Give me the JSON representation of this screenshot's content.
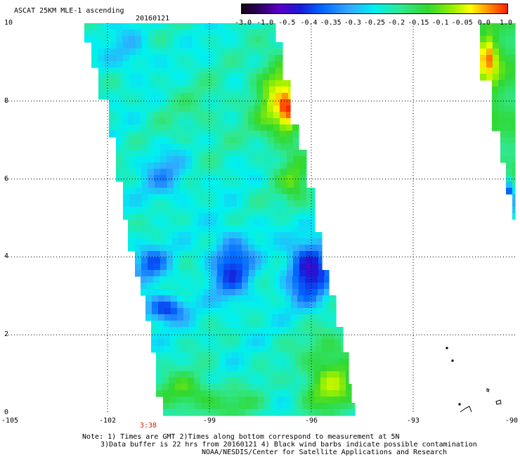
{
  "header": {
    "title": "ASCAT 25KM MLE-1 ascending",
    "date": "20160121"
  },
  "colorbar": {
    "tick_labels": [
      "-3.0",
      "-1.0",
      "-0.5",
      "-0.4",
      "-0.35",
      "-0.3",
      "-0.25",
      "-0.2",
      "-0.15",
      "-0.1",
      "-0.05",
      "0.0",
      "1.0"
    ],
    "colors": [
      "#150019",
      "#2a0055",
      "#5a00c8",
      "#1a1ad8",
      "#0066ff",
      "#33a6ff",
      "#00f0f0",
      "#30e890",
      "#30d830",
      "#a0f000",
      "#ffff00",
      "#ff9000",
      "#ff2000"
    ]
  },
  "axes": {
    "x_ticks": [
      "-105",
      "-102",
      "-99",
      "-96",
      "-93",
      "-90"
    ],
    "y_ticks": [
      "0",
      "2",
      "4",
      "6",
      "8",
      "10"
    ],
    "grid": "dotted"
  },
  "time_marker": "3:38",
  "notes": {
    "line1": "Note: 1) Times are GMT 2)Times along bottom correspond to measurement at 5N",
    "line2": "3)Data buffer is 22 hrs from 20160121 4) Black wind barbs indicate possible contamination",
    "line3": "NOAA/NESDIS/Center for Satellite Applications and Research"
  }
}
